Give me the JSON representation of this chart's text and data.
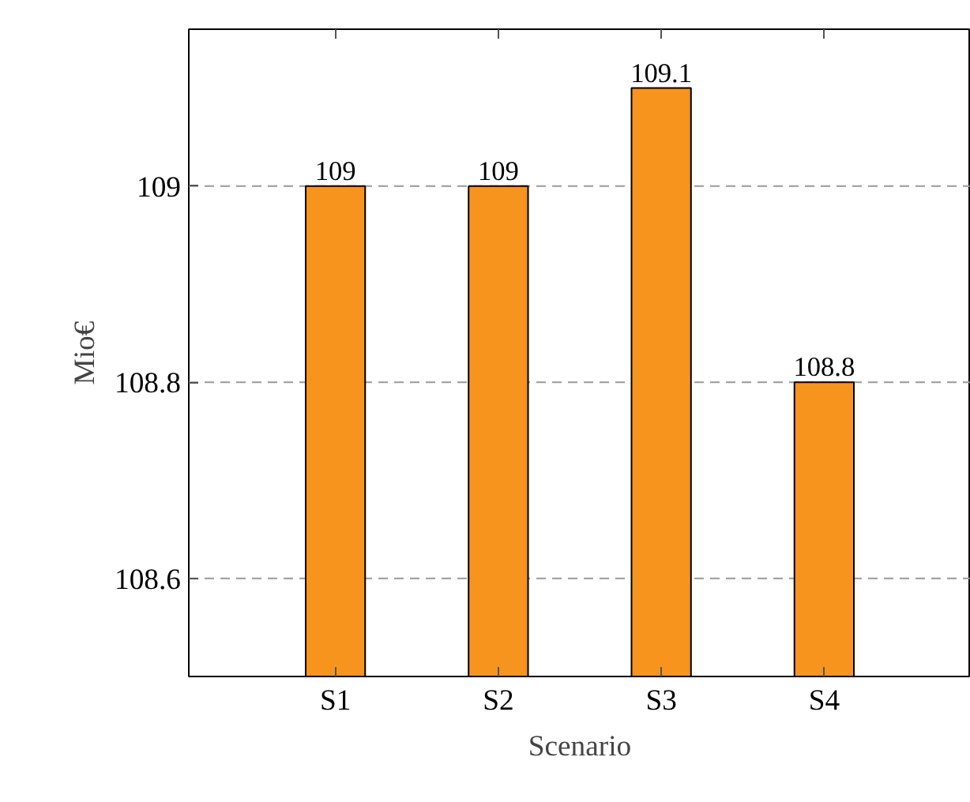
{
  "chart_data": {
    "type": "bar",
    "xlabel": "Scenario",
    "ylabel": "Mio€",
    "categories": [
      "S1",
      "S2",
      "S3",
      "S4"
    ],
    "values": [
      109,
      109,
      109.1,
      108.8
    ],
    "color": "#f7941d",
    "ylim": [
      108.5,
      109.16
    ],
    "yticks": [
      108.6,
      108.8,
      109
    ],
    "grid": "y",
    "data_labels": true
  }
}
